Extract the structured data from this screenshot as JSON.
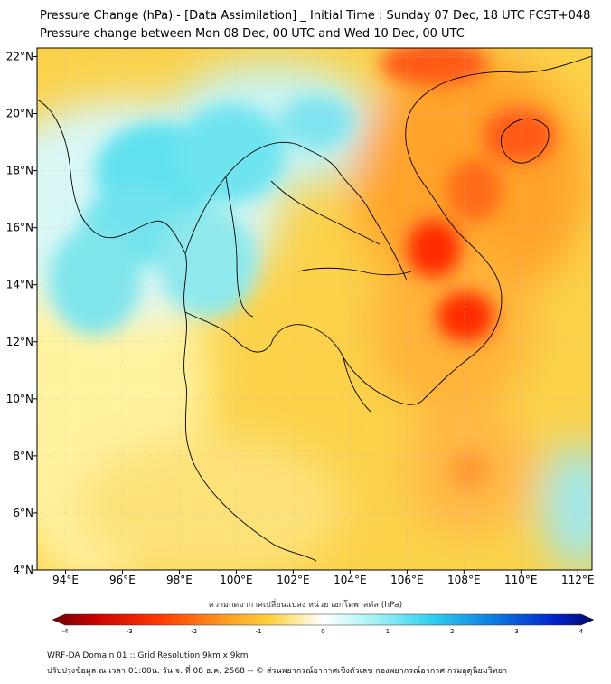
{
  "header": {
    "title_line1": "Pressure Change (hPa) - [Data Assimilation] _ Initial Time : Sunday 07 Dec, 18 UTC FCST+048",
    "title_line2": "Pressure change between Mon 08 Dec, 00 UTC and Wed 10 Dec, 00 UTC"
  },
  "map": {
    "lon_range": [
      93,
      112.5
    ],
    "lat_range": [
      4,
      22.3
    ],
    "lon_ticks": [
      {
        "value": 94,
        "label": "94°E"
      },
      {
        "value": 96,
        "label": "96°E"
      },
      {
        "value": 98,
        "label": "98°E"
      },
      {
        "value": 100,
        "label": "100°E"
      },
      {
        "value": 102,
        "label": "102°E"
      },
      {
        "value": 104,
        "label": "104°E"
      },
      {
        "value": 106,
        "label": "106°E"
      },
      {
        "value": 108,
        "label": "108°E"
      },
      {
        "value": 110,
        "label": "110°E"
      },
      {
        "value": 112,
        "label": "112°E"
      }
    ],
    "lat_ticks": [
      {
        "value": 4,
        "label": "4°N"
      },
      {
        "value": 6,
        "label": "6°N"
      },
      {
        "value": 8,
        "label": "8°N"
      },
      {
        "value": 10,
        "label": "10°N"
      },
      {
        "value": 12,
        "label": "12°N"
      },
      {
        "value": 14,
        "label": "14°N"
      },
      {
        "value": 16,
        "label": "16°N"
      },
      {
        "value": 18,
        "label": "18°N"
      },
      {
        "value": 20,
        "label": "20°N"
      },
      {
        "value": 22,
        "label": "22°N"
      }
    ],
    "colors": {
      "neg_strong": "#cc0000",
      "neg_mid": "#ff8c1a",
      "neutral": "#fff59a",
      "pos_mid": "#5ce0f0",
      "pos_strong": "#0022cc",
      "background_field": "#fbd24a",
      "coastline": "#000000"
    }
  },
  "colorbar": {
    "title": "ความกดอากาศเปลี่ยนแปลง หน่วย เฮกโตพาสคัล (hPa)",
    "min": -4,
    "max": 4,
    "ticks": [
      "-4",
      "-3",
      "-2",
      "-1",
      "0",
      "1",
      "2",
      "3",
      "4"
    ]
  },
  "footer": {
    "line1": "WRF-DA Domain 01 :: Grid Resolution 9km x 9km",
    "line2": "ปรับปรุงข้อมูล ณ เวลา 01:00น. วัน จ. ที่ 08 ธ.ค. 2568 -- © ส่วนพยากรณ์อากาศเชิงตัวเลข กองพยากรณ์อากาศ กรมอุตุนิยมวิทยา"
  }
}
